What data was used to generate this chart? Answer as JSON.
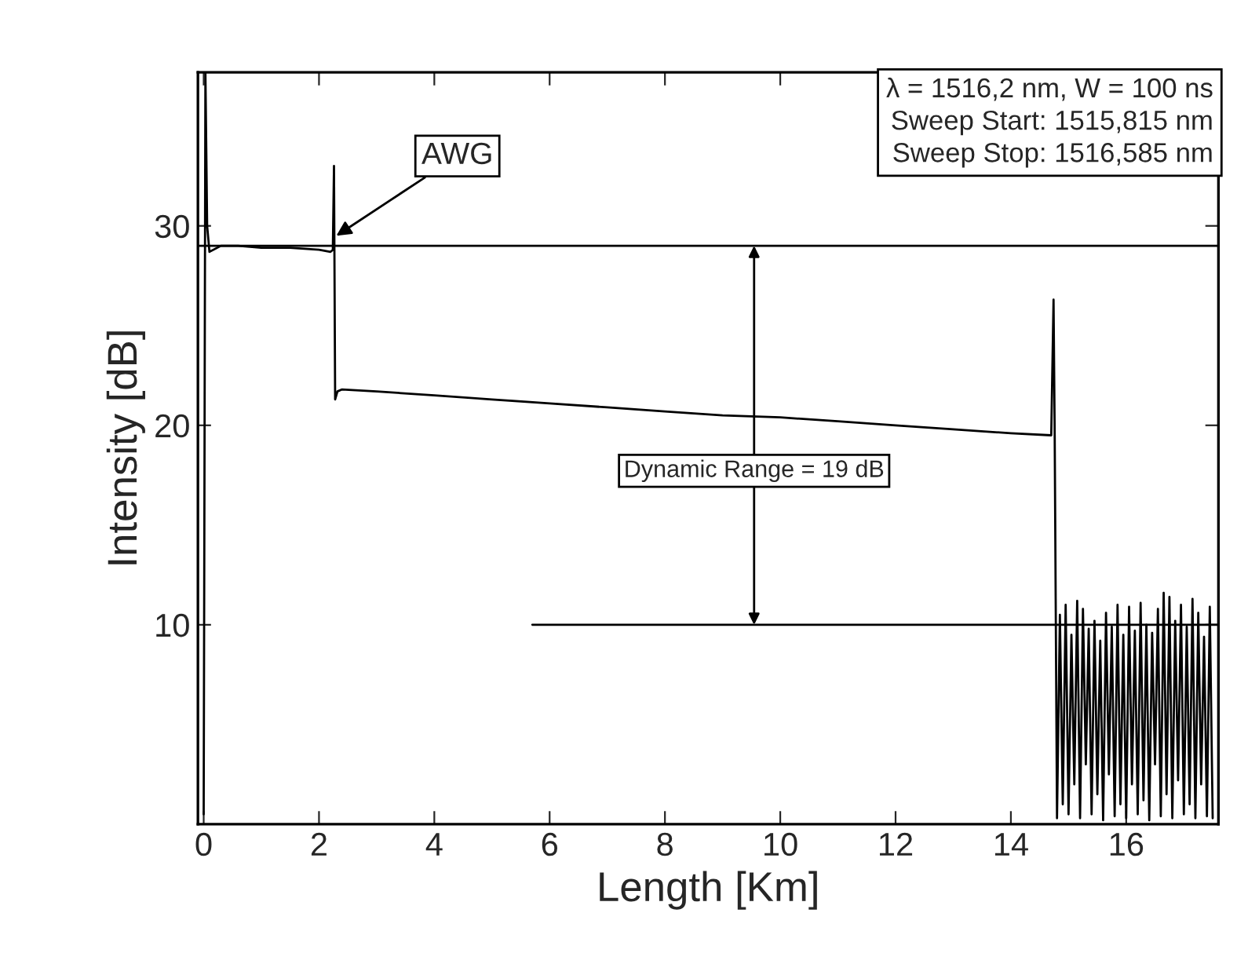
{
  "chart_data": {
    "type": "line",
    "xlabel": "Length [Km]",
    "ylabel": "Intensity [dB]",
    "xlim": [
      -0.1,
      17.6
    ],
    "xticks": [
      0,
      2,
      4,
      6,
      8,
      10,
      12,
      14,
      16
    ],
    "ylim": [
      0,
      37.7
    ],
    "yticks": [
      10,
      20,
      30
    ],
    "grid": false,
    "legend": false,
    "marker": "none",
    "line_style": "solid",
    "series": [
      {
        "color": "#000000",
        "x": [
          0,
          0.03,
          0.06,
          0.1,
          0.3,
          0.6,
          1.0,
          1.5,
          2.0,
          2.2,
          2.24,
          2.26,
          2.28,
          2.32,
          2.4,
          3,
          4,
          5,
          6,
          7,
          8,
          9,
          10,
          11,
          12,
          13,
          14,
          14.7,
          14.74,
          14.76,
          14.8,
          14.85,
          14.9,
          14.95,
          15.0,
          15.05,
          15.1,
          15.15,
          15.2,
          15.25,
          15.3,
          15.35,
          15.4,
          15.45,
          15.5,
          15.55,
          15.6,
          15.65,
          15.7,
          15.75,
          15.8,
          15.85,
          15.9,
          15.95,
          16.0,
          16.05,
          16.1,
          16.15,
          16.2,
          16.25,
          16.3,
          16.35,
          16.4,
          16.45,
          16.5,
          16.55,
          16.6,
          16.65,
          16.7,
          16.75,
          16.8,
          16.85,
          16.9,
          16.95,
          17.0,
          17.05,
          17.1,
          17.15,
          17.2,
          17.25,
          17.3,
          17.35,
          17.4,
          17.45,
          17.5
        ],
        "values": [
          0.5,
          37.7,
          30,
          28.7,
          29.0,
          29.0,
          28.9,
          28.9,
          28.8,
          28.7,
          28.8,
          33,
          21.3,
          21.7,
          21.8,
          21.7,
          21.5,
          21.3,
          21.1,
          20.9,
          20.7,
          20.5,
          20.4,
          20.2,
          20.0,
          19.8,
          19.6,
          19.5,
          26.3,
          19.5,
          0.3,
          10.5,
          1.0,
          11.0,
          0.5,
          9.5,
          2.0,
          11.2,
          0.3,
          10.8,
          3.0,
          9.8,
          0.5,
          10.2,
          1.5,
          9.2,
          0.2,
          10.6,
          2.5,
          9.9,
          0.4,
          11.0,
          1.0,
          9.5,
          0.3,
          10.9,
          2.0,
          9.7,
          0.5,
          11.1,
          1.2,
          10.0,
          0.2,
          9.6,
          3.0,
          10.8,
          0.4,
          11.6,
          1.5,
          11.4,
          0.3,
          10.2,
          2.2,
          11.0,
          0.5,
          9.9,
          1.0,
          11.3,
          0.3,
          10.6,
          2.0,
          9.4,
          0.4,
          10.9,
          0.3
        ]
      },
      {
        "color": "#000000",
        "x": [
          5.7,
          17.6
        ],
        "values": [
          10,
          10
        ]
      }
    ],
    "ref_lines": [
      {
        "axis": "y",
        "value": 29,
        "color": "#000000",
        "line_style": "solid"
      }
    ],
    "annotations": [
      {
        "text": "AWG",
        "x": 2.3,
        "y": 29.5
      },
      "Dynamic Range = 19 dB",
      "λ = 1516,2 nm, W = 100 ns\nSweep Start: 1515,815 nm\nSweep Stop: 1516,585 nm"
    ]
  }
}
